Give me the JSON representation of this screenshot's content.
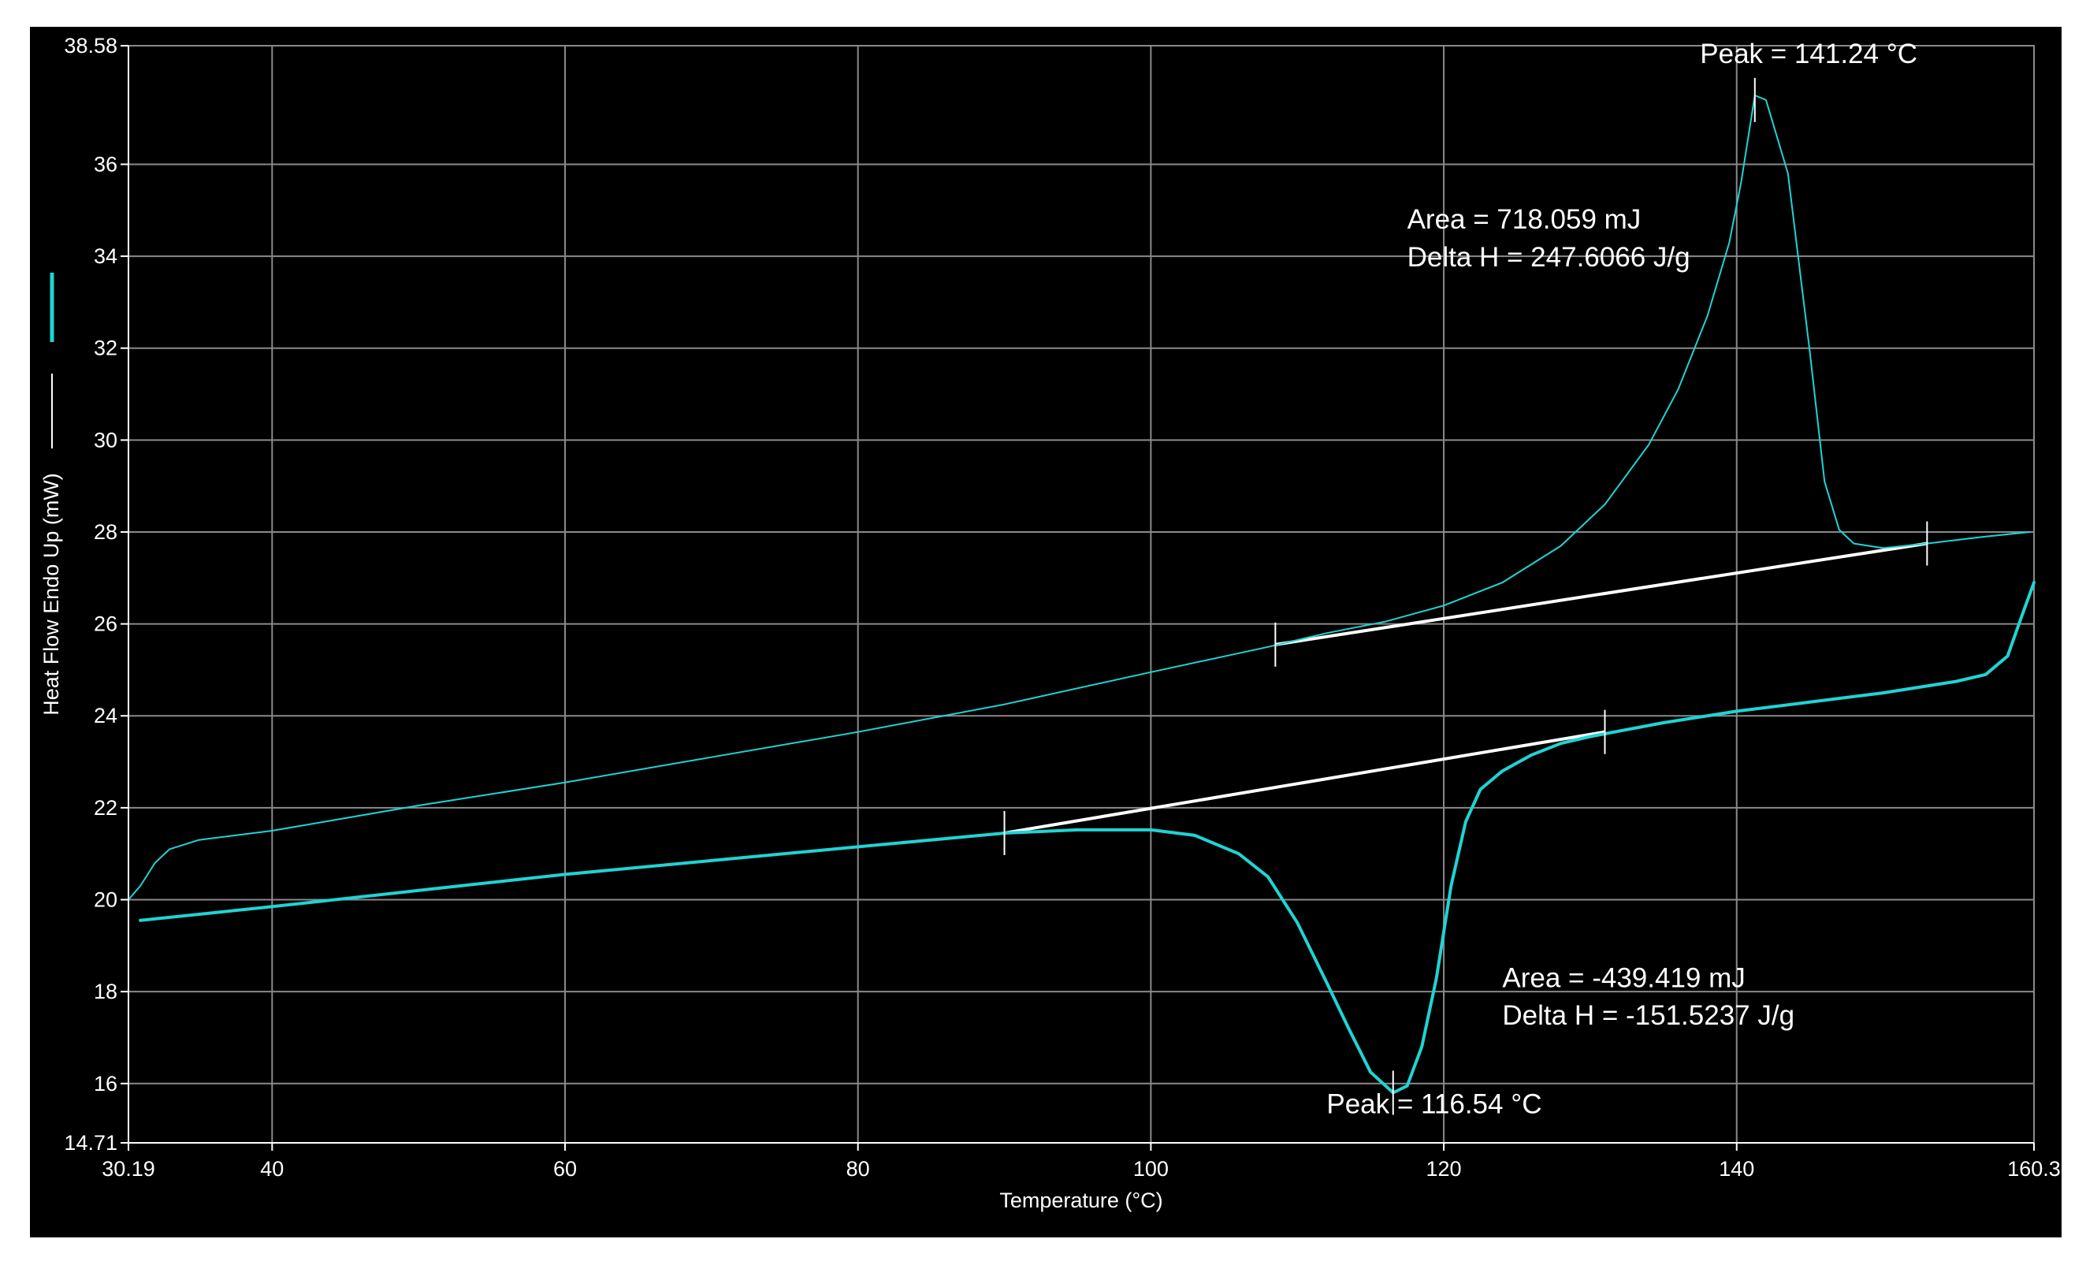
{
  "chart_data": {
    "type": "line",
    "title": "",
    "xlabel": "Temperature (°C)",
    "ylabel": "Heat Flow Endo Up (mW)",
    "xlim": [
      30.19,
      160.3
    ],
    "ylim": [
      14.71,
      38.58
    ],
    "x_ticks": [
      40,
      60,
      80,
      100,
      120,
      140
    ],
    "x_tick_labels": [
      "30.19",
      "40",
      "60",
      "80",
      "100",
      "120",
      "140",
      "160.3"
    ],
    "y_ticks": [
      16,
      18,
      20,
      22,
      24,
      26,
      28,
      30,
      32,
      34,
      36
    ],
    "y_tick_labels": [
      "14.71",
      "16",
      "18",
      "20",
      "22",
      "24",
      "26",
      "28",
      "30",
      "32",
      "34",
      "36",
      "38.58"
    ],
    "grid": true,
    "colors": {
      "background": "#000000",
      "series": "#1fd4d4",
      "baseline": "#ffffff",
      "grid": "#8a8a8a",
      "text": "#ffffff"
    },
    "legend": {
      "position": "left",
      "entries": [
        {
          "color": "#1fd4d4"
        },
        {
          "color": "#ffffff"
        }
      ]
    },
    "series": [
      {
        "role": "heating",
        "color": "#1fd4d4",
        "width": 2,
        "points": [
          [
            30.19,
            20.0
          ],
          [
            31,
            20.3
          ],
          [
            32,
            20.8
          ],
          [
            33,
            21.1
          ],
          [
            35,
            21.3
          ],
          [
            40,
            21.5
          ],
          [
            50,
            22.05
          ],
          [
            60,
            22.55
          ],
          [
            70,
            23.1
          ],
          [
            80,
            23.65
          ],
          [
            90,
            24.25
          ],
          [
            100,
            24.95
          ],
          [
            108,
            25.5
          ],
          [
            112,
            25.8
          ],
          [
            116,
            26.05
          ],
          [
            120,
            26.4
          ],
          [
            124,
            26.9
          ],
          [
            128,
            27.7
          ],
          [
            131,
            28.6
          ],
          [
            134,
            29.9
          ],
          [
            136,
            31.1
          ],
          [
            138,
            32.7
          ],
          [
            139.5,
            34.3
          ],
          [
            140.3,
            35.6
          ],
          [
            141.24,
            37.5
          ],
          [
            142,
            37.4
          ],
          [
            143.5,
            35.8
          ],
          [
            145,
            31.9
          ],
          [
            146,
            29.1
          ],
          [
            147,
            28.05
          ],
          [
            148,
            27.75
          ],
          [
            150,
            27.65
          ],
          [
            153,
            27.75
          ],
          [
            157,
            27.9
          ],
          [
            160,
            28.0
          ]
        ]
      },
      {
        "role": "cooling",
        "color": "#1fd4d4",
        "width": 4,
        "points": [
          [
            31,
            19.55
          ],
          [
            40,
            19.85
          ],
          [
            50,
            20.2
          ],
          [
            60,
            20.55
          ],
          [
            70,
            20.85
          ],
          [
            80,
            21.15
          ],
          [
            90,
            21.45
          ],
          [
            95,
            21.52
          ],
          [
            100,
            21.52
          ],
          [
            103,
            21.4
          ],
          [
            106,
            21.0
          ],
          [
            108,
            20.5
          ],
          [
            110,
            19.5
          ],
          [
            112,
            18.2
          ],
          [
            113.5,
            17.2
          ],
          [
            115,
            16.25
          ],
          [
            116.54,
            15.8
          ],
          [
            117.5,
            15.95
          ],
          [
            118.5,
            16.8
          ],
          [
            119.5,
            18.3
          ],
          [
            120.5,
            20.3
          ],
          [
            121.5,
            21.7
          ],
          [
            122.5,
            22.4
          ],
          [
            124,
            22.8
          ],
          [
            126,
            23.15
          ],
          [
            128,
            23.4
          ],
          [
            130,
            23.55
          ],
          [
            135,
            23.85
          ],
          [
            140,
            24.1
          ],
          [
            150,
            24.5
          ],
          [
            155,
            24.75
          ],
          [
            157,
            24.9
          ],
          [
            158.5,
            25.3
          ],
          [
            159.5,
            26.2
          ],
          [
            160.3,
            26.9
          ]
        ]
      }
    ],
    "baselines": [
      {
        "x1": 108.5,
        "y1": 25.55,
        "x2": 153.0,
        "y2": 27.75
      },
      {
        "x1": 90.0,
        "y1": 21.45,
        "x2": 131.0,
        "y2": 23.65
      }
    ],
    "markers": [
      {
        "x": 108.5,
        "y": 25.55
      },
      {
        "x": 153.0,
        "y": 27.75
      },
      {
        "x": 141.24,
        "y": 37.4
      },
      {
        "x": 90.0,
        "y": 21.45
      },
      {
        "x": 131.0,
        "y": 23.65
      },
      {
        "x": 116.54,
        "y": 15.8
      }
    ],
    "annotations": [
      {
        "text": "Peak = 141.24 °C",
        "x": 137.5,
        "y": 38.2
      },
      {
        "text": "Area = 718.059 mJ",
        "x": 117.5,
        "y": 34.6
      },
      {
        "text": "Delta H = 247.6066 J/g",
        "x": 117.5,
        "y": 33.78
      },
      {
        "text": "Area = -439.419 mJ",
        "x": 124,
        "y": 18.1
      },
      {
        "text": "Delta H = -151.5237 J/g",
        "x": 124,
        "y": 17.28
      },
      {
        "text": "Peak = 116.54 °C",
        "x": 112,
        "y": 15.35
      }
    ]
  }
}
